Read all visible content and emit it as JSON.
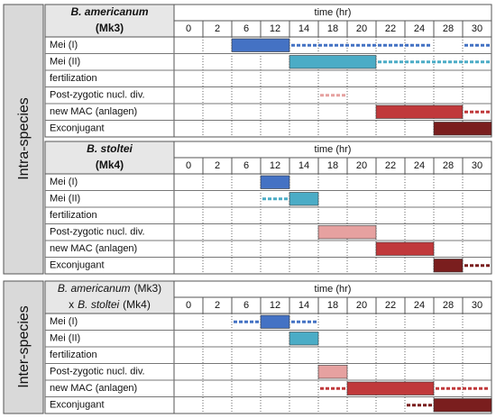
{
  "side_labels": {
    "intra": "Intra-species",
    "inter": "Inter-species"
  },
  "tables": [
    {
      "title_lines": [
        [
          {
            "text": "B. americanum",
            "italic": true
          }
        ],
        [
          {
            "text": "(Mk3)",
            "italic": false
          }
        ]
      ],
      "time_header": "time (hr)",
      "times": [
        0,
        2,
        6,
        12,
        14,
        18,
        20,
        22,
        24,
        28,
        30
      ],
      "rows": [
        "Mei (I)",
        "Mei (II)",
        "fertilization",
        "Post-zygotic nucl. div.",
        "new MAC (anlagen)",
        "Exconjugant"
      ]
    },
    {
      "title_lines": [
        [
          {
            "text": "B. stoltei",
            "italic": true
          }
        ],
        [
          {
            "text": "(Mk4)",
            "italic": false
          }
        ]
      ],
      "time_header": "time (hr)",
      "times": [
        0,
        2,
        6,
        12,
        14,
        18,
        20,
        22,
        24,
        28,
        30
      ],
      "rows": [
        "Mei (I)",
        "Mei (II)",
        "fertilization",
        "Post-zygotic nucl. div.",
        "new MAC (anlagen)",
        "Exconjugant"
      ]
    },
    {
      "title_lines": [
        [
          {
            "text": "B. americanum",
            "italic": true
          },
          {
            "text": "(Mk3)",
            "italic": false
          }
        ],
        [
          {
            "text": "x",
            "italic": false
          },
          {
            "text": "B. stoltei",
            "italic": true
          },
          {
            "text": "(Mk4)",
            "italic": false
          }
        ]
      ],
      "time_header": "time (hr)",
      "times": [
        0,
        2,
        6,
        12,
        14,
        18,
        20,
        22,
        24,
        28,
        30
      ],
      "rows": [
        "Mei (I)",
        "Mei (II)",
        "fertilization",
        "Post-zygotic nucl. div.",
        "new MAC (anlagen)",
        "Exconjugant"
      ]
    }
  ]
}
